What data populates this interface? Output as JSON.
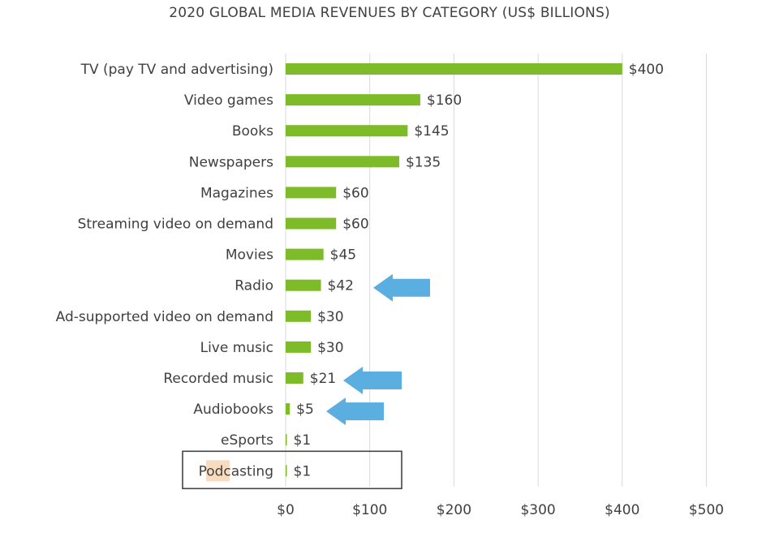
{
  "chart_data": {
    "type": "bar",
    "orientation": "horizontal",
    "title": "2020 GLOBAL MEDIA REVENUES BY CATEGORY (US$ BILLIONS)",
    "categories": [
      "TV (pay TV and advertising)",
      "Video games",
      "Books",
      "Newspapers",
      "Magazines",
      "Streaming video on demand",
      "Movies",
      "Radio",
      "Ad-supported video on demand",
      "Live music",
      "Recorded music",
      "Audiobooks",
      "eSports",
      "Podcasting"
    ],
    "values": [
      400,
      160,
      145,
      135,
      60,
      60,
      45,
      42,
      30,
      30,
      21,
      5,
      1,
      1
    ],
    "value_labels": [
      "$400",
      "$160",
      "$145",
      "$135",
      "$60",
      "$60",
      "$45",
      "$42",
      "$30",
      "$30",
      "$21",
      "$5",
      "$1",
      "$1"
    ],
    "xticks": [
      0,
      100,
      200,
      300,
      400,
      500
    ],
    "xtick_labels": [
      "$0",
      "$100",
      "$200",
      "$300",
      "$400",
      "$500"
    ],
    "xlim": [
      0,
      500
    ],
    "grid": "vertical",
    "legend": "none",
    "bar_color": "#7dbb28",
    "highlighted_categories": [
      "Radio",
      "Recorded music",
      "Audiobooks"
    ],
    "highlight_arrow_color": "#5aaee0",
    "boxed_category": "Podcasting",
    "boxed_label_highlight_color": "#f9dcc0"
  }
}
